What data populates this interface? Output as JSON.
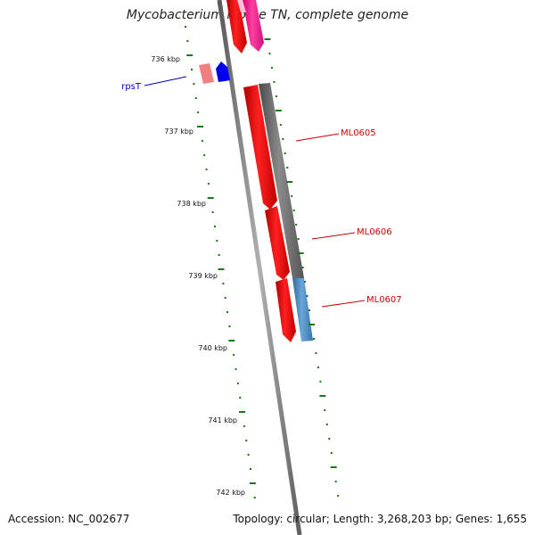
{
  "title": "Mycobacterium leprae TN, complete genome",
  "footer": {
    "accession": "Accession: NC_002677",
    "summary": "Topology: circular; Length: 3,268,203 bp; Genes: 1,655"
  },
  "ruler": {
    "labels": [
      "736 kbp",
      "737 kbp",
      "738 kbp",
      "739 kbp",
      "740 kbp",
      "741 kbp",
      "742 kbp"
    ]
  },
  "genes": {
    "labels": [
      {
        "text": "rpsT",
        "color": "#0000cc"
      },
      {
        "text": "ML0605",
        "color": "#cc0000"
      },
      {
        "text": "ML0606",
        "color": "#cc0000"
      },
      {
        "text": "ML0607",
        "color": "#cc0000"
      }
    ]
  },
  "colors": {
    "cds": "#ff0000",
    "cds_light": "#f08080",
    "cds_blue": "#0000ee",
    "magenta": "#ff1493",
    "grey": "#666666",
    "steel": "#4682b4",
    "backbone": "#808080",
    "ticks": "#1a7a1a"
  }
}
